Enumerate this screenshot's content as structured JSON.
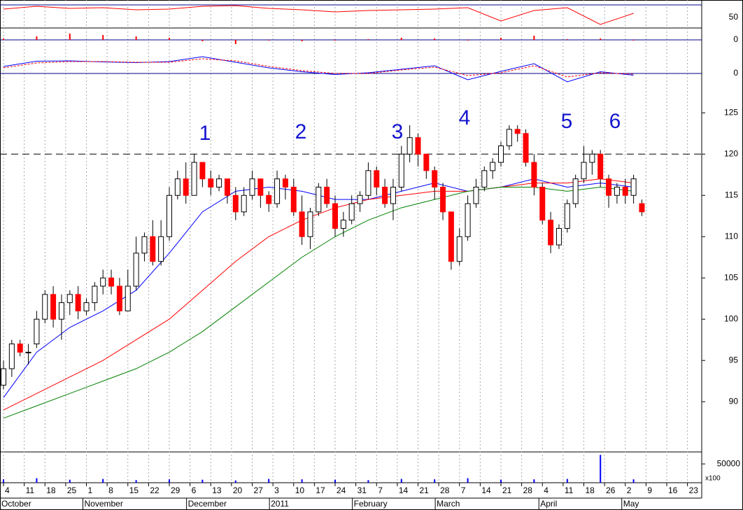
{
  "chart_data": {
    "type": "candlestick",
    "annotations": [
      "1",
      "2",
      "3",
      "4",
      "5",
      "6"
    ],
    "open": [
      92,
      94,
      97,
      96,
      97,
      100,
      103,
      100,
      102,
      103,
      101,
      102,
      104,
      105,
      104,
      101,
      104,
      108,
      110,
      107,
      110,
      115,
      117,
      115,
      119,
      117,
      116,
      117,
      115,
      113,
      115,
      117,
      115,
      114,
      117,
      116,
      113,
      110,
      113,
      116,
      114,
      111,
      112,
      114,
      115,
      118,
      116,
      114,
      116,
      120,
      122,
      120,
      118,
      116,
      113,
      107,
      110,
      114,
      116,
      118,
      119,
      121,
      123,
      122.5,
      119,
      116,
      112,
      109,
      111,
      114,
      117,
      119,
      120,
      117,
      115,
      116,
      115,
      114
    ],
    "high": [
      95,
      97.5,
      97.5,
      97,
      101,
      103.5,
      104,
      103,
      103.5,
      104,
      102.5,
      104.5,
      106,
      106,
      105,
      106,
      110,
      110.5,
      112,
      112,
      116,
      118,
      119,
      120,
      119,
      118,
      117.5,
      117,
      116,
      116,
      118,
      117,
      115.5,
      118,
      117.5,
      117,
      115,
      113.5,
      116.5,
      117,
      115,
      113,
      115,
      115.5,
      119,
      118.5,
      117,
      117,
      121,
      123.5,
      122.5,
      120,
      118.5,
      116.5,
      113,
      111,
      115,
      117,
      118.5,
      119.5,
      121.5,
      123.5,
      123.5,
      123,
      120,
      116.5,
      113,
      111.5,
      114.5,
      117.5,
      121,
      120.5,
      120.5,
      117.5,
      116.5,
      117,
      117.5,
      114.5
    ],
    "low": [
      91.5,
      93,
      95.5,
      94.5,
      96.5,
      99.5,
      99,
      97.5,
      100.5,
      100,
      100.5,
      101,
      103,
      103,
      100.5,
      101,
      103.5,
      107,
      106.5,
      106.5,
      109.5,
      114.5,
      114,
      115,
      116,
      115,
      115.5,
      114,
      112,
      112.5,
      114.5,
      113.5,
      113,
      113.5,
      114.5,
      112.5,
      109,
      108.5,
      112.5,
      113.5,
      110,
      110,
      111.5,
      113,
      114.5,
      115,
      113.5,
      112,
      115.5,
      119,
      118.5,
      117,
      114.5,
      112,
      106,
      106.5,
      109.5,
      113.5,
      115.5,
      117,
      118.5,
      120.5,
      121.5,
      118.5,
      115,
      111.5,
      108,
      108.5,
      110.5,
      113.5,
      116.5,
      117.5,
      116,
      113.5,
      114,
      114,
      114,
      112.5
    ],
    "close": [
      94,
      97,
      96,
      96,
      100,
      103,
      100,
      102,
      103,
      101,
      102,
      104,
      105,
      104,
      101,
      104,
      108,
      110,
      107,
      110,
      115,
      117,
      115,
      119,
      117,
      116,
      117,
      115,
      113,
      115,
      117,
      115,
      114,
      117,
      116,
      113,
      110,
      113,
      116,
      114,
      111,
      112,
      114,
      115,
      118,
      116,
      114,
      116,
      120,
      122,
      120,
      118,
      116,
      113,
      107,
      110,
      114,
      116,
      118,
      119,
      121,
      123,
      122.5,
      119,
      116,
      112,
      109,
      111,
      114,
      117,
      119,
      120,
      117,
      115,
      116,
      115,
      117,
      113
    ],
    "up_color": "#ffffff",
    "down_color": "#ff0000",
    "hline": 120,
    "ylim": [
      84,
      128.5
    ],
    "yticks": [
      90,
      95,
      100,
      105,
      110,
      115,
      120,
      125
    ],
    "ma_x": [
      0,
      4,
      8,
      12,
      16,
      20,
      24,
      28,
      32,
      36,
      40,
      44,
      48,
      52,
      56,
      60,
      64,
      68,
      72,
      76
    ],
    "series": [
      {
        "color": "#0000ff",
        "values": [
          90.5,
          96,
          99,
          101,
          103.5,
          108,
          113,
          115.5,
          116,
          115.5,
          114.5,
          114.5,
          115.5,
          116.5,
          115.5,
          116,
          117,
          116,
          116.5,
          116
        ]
      },
      {
        "color": "#ff0000",
        "values": [
          89,
          91,
          93,
          95,
          97.5,
          100,
          103.5,
          107,
          110,
          112,
          113.5,
          114.5,
          115,
          115.5,
          115.5,
          116,
          116.5,
          116.5,
          117,
          116.5
        ]
      },
      {
        "color": "#008000",
        "values": [
          88,
          89.5,
          91,
          92.5,
          94,
          96,
          98.5,
          101.5,
          104.5,
          107.5,
          110,
          112,
          113.5,
          114.5,
          115.5,
          116,
          116,
          115.5,
          116,
          115.5
        ]
      }
    ],
    "oscillator": {
      "color": "#ff0000",
      "ylim": [
        35,
        70
      ],
      "yticks": [
        50
      ],
      "values": [
        62,
        66,
        63,
        64,
        61,
        62,
        66,
        67,
        63,
        61,
        58,
        60,
        61,
        62,
        64,
        45,
        60,
        64,
        40,
        56
      ]
    },
    "histogram": {
      "color": "#ff0000",
      "ylim": [
        -10,
        15
      ],
      "yticks": [
        0
      ],
      "values": [
        2,
        5,
        9,
        7,
        5,
        3,
        -2,
        -6,
        -1,
        -2,
        -1,
        1,
        3,
        2,
        -1,
        3,
        6,
        1,
        2,
        -1
      ]
    },
    "macd": {
      "ylim": [
        -3,
        7
      ],
      "yticks": [
        0
      ],
      "series": [
        {
          "color": "#0000ff",
          "values": [
            2,
            3.5,
            3.6,
            3.3,
            3.1,
            3.4,
            4.8,
            3.2,
            1.6,
            0.5,
            -0.3,
            0.2,
            1.2,
            2.2,
            -1.8,
            0.6,
            2.8,
            -2.4,
            0.5,
            -0.5
          ]
        },
        {
          "color": "#ff0000",
          "values": [
            1.6,
            3,
            3.4,
            3.4,
            3.2,
            3.2,
            4.2,
            3.6,
            2,
            0.8,
            0,
            0,
            1,
            1.8,
            -0.6,
            0.2,
            2.2,
            -1,
            0.2,
            -0.2
          ]
        }
      ]
    },
    "volume": {
      "color": "#0000ff",
      "ylim": [
        0,
        80000
      ],
      "yticks": [
        50000
      ],
      "unit": "x100",
      "values": [
        9000,
        12000,
        8000,
        10000,
        7000,
        9000,
        8000,
        6000,
        10000,
        9000,
        8000,
        7000,
        10000,
        9000,
        12000,
        8000,
        9000,
        10000,
        74000,
        9000
      ]
    },
    "xticks": [
      "4",
      "11",
      "18",
      "25",
      "1",
      "8",
      "15",
      "22",
      "29",
      "6",
      "13",
      "20",
      "27",
      "3",
      "10",
      "17",
      "24",
      "31",
      "7",
      "14",
      "21",
      "28",
      "7",
      "14",
      "21",
      "28",
      "4",
      "11",
      "18",
      "26",
      "2",
      "9",
      "16",
      "23"
    ],
    "months": [
      "October",
      "November",
      "December",
      "2011",
      "February",
      "March",
      "April",
      "May"
    ]
  }
}
